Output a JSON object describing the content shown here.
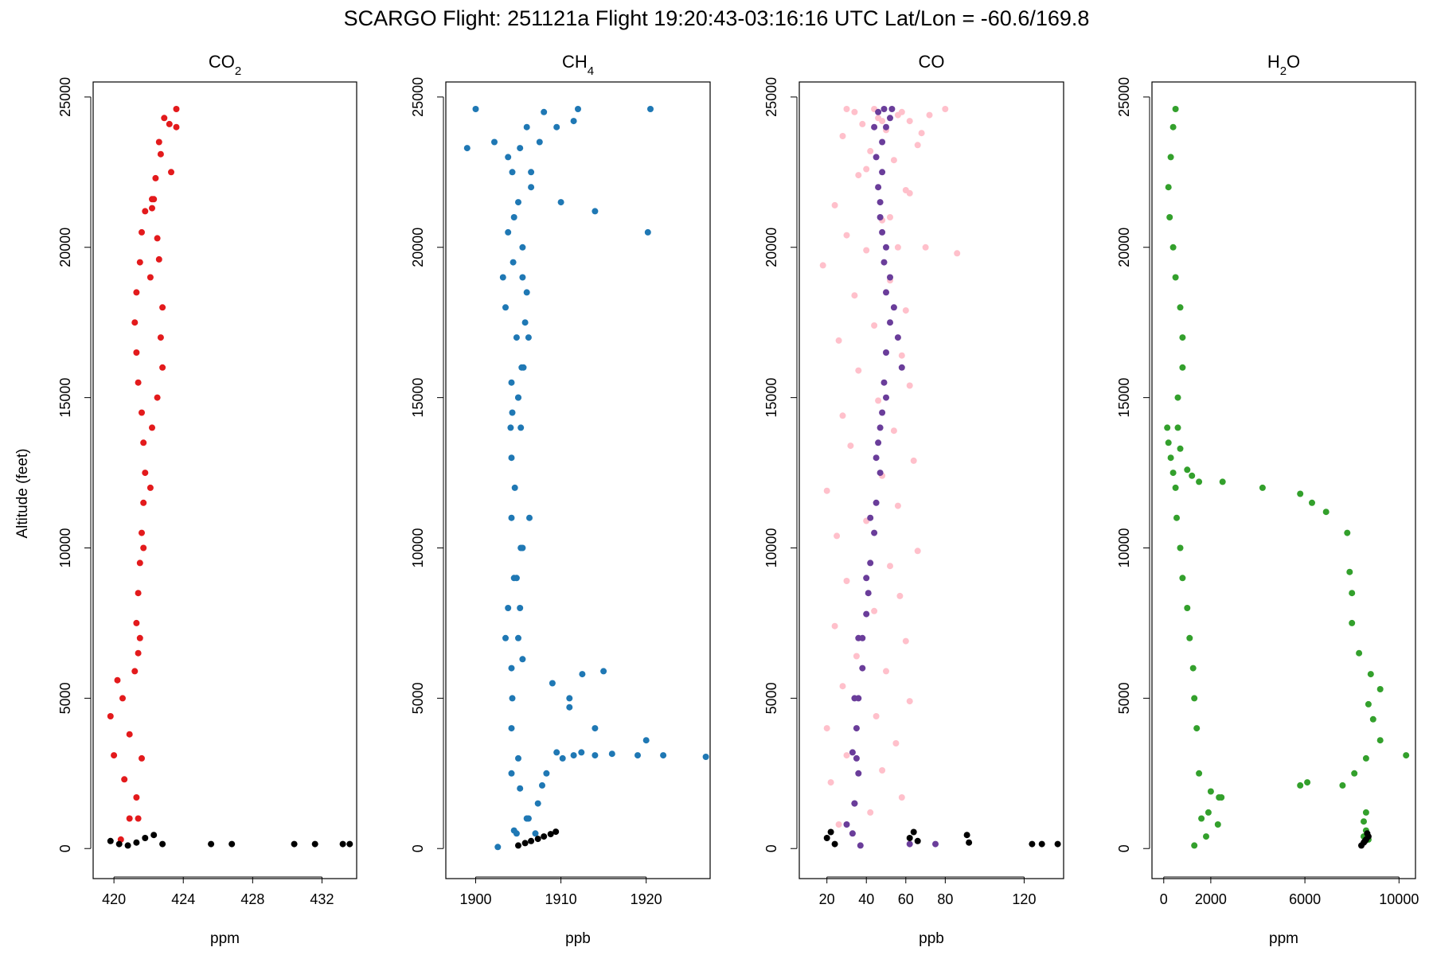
{
  "figure": {
    "title": "SCARGO Flight: 251121a  Flight  19:20:43-03:16:16 UTC  Lat/Lon = -60.6/169.8",
    "ylabel": "Altitude (feet)"
  },
  "chart_data": [
    {
      "type": "scatter",
      "title": "CO",
      "title_sub": "2",
      "title_after": "",
      "xlabel": "ppm",
      "ylabel": "Altitude (feet)",
      "xlim": [
        418.8,
        434.0
      ],
      "ylim": [
        -1000,
        25500
      ],
      "xticks": [
        420,
        424,
        428,
        432
      ],
      "yticks": [
        0,
        5000,
        10000,
        15000,
        20000,
        25000
      ],
      "grid": false,
      "series": [
        {
          "color": "#e31a1c",
          "x": [
            420.4,
            420.9,
            421.3,
            420.6,
            420.0,
            420.9,
            419.8,
            420.5,
            420.2,
            421.2,
            421.4,
            421.3,
            421.4,
            421.5,
            421.6,
            421.7,
            421.8,
            421.7,
            421.6,
            421.4,
            421.3,
            421.2,
            421.3,
            421.5,
            421.6,
            421.8,
            422.2,
            423.3,
            422.6,
            423.6,
            422.9,
            423.6,
            423.2,
            422.7,
            422.4,
            422.3,
            422.2,
            422.5,
            422.6,
            422.1,
            422.8,
            422.7,
            422.8,
            422.5,
            422.2,
            422.1,
            421.7,
            421.5,
            421.6,
            421.4
          ],
          "y": [
            300,
            1000,
            1700,
            2300,
            3100,
            3800,
            4400,
            5000,
            5600,
            5900,
            6500,
            7500,
            8500,
            9500,
            10500,
            11500,
            12500,
            13500,
            14500,
            15500,
            16500,
            17500,
            18500,
            19500,
            20500,
            21200,
            21600,
            22500,
            23500,
            24000,
            24300,
            24600,
            24100,
            23100,
            22300,
            21600,
            21300,
            20300,
            19600,
            19000,
            18000,
            17000,
            16000,
            15000,
            14000,
            12000,
            10000,
            7000,
            3000,
            1000
          ]
        },
        {
          "color": "#000000",
          "x": [
            419.8,
            420.3,
            420.8,
            421.3,
            421.8,
            422.3,
            422.8,
            425.6,
            426.8,
            430.4,
            431.6,
            433.2,
            433.6
          ],
          "y": [
            250,
            150,
            100,
            200,
            350,
            450,
            150,
            150,
            150,
            150,
            150,
            150,
            150
          ]
        }
      ]
    },
    {
      "type": "scatter",
      "title": "CH",
      "title_sub": "4",
      "title_after": "",
      "xlabel": "ppb",
      "ylabel": "Altitude (feet)",
      "xlim": [
        1896.5,
        1927.5
      ],
      "ylim": [
        -1000,
        25500
      ],
      "xticks": [
        1900,
        1910,
        1920
      ],
      "yticks": [
        0,
        5000,
        10000,
        15000,
        20000,
        25000
      ],
      "grid": false,
      "series": [
        {
          "color": "#1f78b4",
          "x": [
            1902.6,
            1904.8,
            1906.2,
            1907.3,
            1907.8,
            1908.3,
            1910.2,
            1911.5,
            1912.4,
            1914.0,
            1916.0,
            1919.0,
            1922.0,
            1927.0,
            1920.0,
            1914.0,
            1911.0,
            1909.0,
            1905.5,
            1905.0,
            1905.2,
            1904.8,
            1905.3,
            1904.2,
            1904.6,
            1904.2,
            1904.1,
            1904.3,
            1905.0,
            1904.2,
            1905.6,
            1904.8,
            1903.5,
            1903.2,
            1904.4,
            1905.5,
            1903.8,
            1904.5,
            1905.0,
            1906.5,
            1904.3,
            1903.8,
            1905.2,
            1902.2,
            1899.0,
            1906.0,
            1911.5,
            1908.0,
            1900.0,
            1912.0,
            1920.5,
            1920.2,
            1914.0,
            1910.0,
            1906.5,
            1907.5,
            1909.5,
            1905.5,
            1906.0,
            1905.8,
            1906.2,
            1905.4,
            1905.0,
            1905.3,
            1906.3,
            1905.5,
            1904.5,
            1903.8,
            1903.5,
            1904.2,
            1904.3,
            1904.2,
            1905.0,
            1905.2,
            1906.0,
            1907.0,
            1909.5,
            1911.0,
            1912.5,
            1915.0,
            1904.5,
            1904.2
          ],
          "y": [
            50,
            500,
            1000,
            1500,
            2100,
            2500,
            3000,
            3100,
            3200,
            3100,
            3150,
            3100,
            3100,
            3050,
            3600,
            4000,
            4700,
            5500,
            6300,
            7000,
            8000,
            9000,
            10000,
            11000,
            12000,
            13000,
            14000,
            14500,
            15000,
            15500,
            16000,
            17000,
            18000,
            19000,
            19500,
            20000,
            20500,
            21000,
            21500,
            22000,
            22500,
            23000,
            23300,
            23500,
            23300,
            24000,
            24200,
            24500,
            24600,
            24600,
            24600,
            20500,
            21200,
            21500,
            22500,
            23500,
            24000,
            19000,
            18500,
            17500,
            17000,
            16000,
            15000,
            14000,
            11000,
            10000,
            9000,
            8000,
            7000,
            6000,
            5000,
            4000,
            3000,
            2000,
            1000,
            500,
            3200,
            5000,
            5800,
            5900,
            600,
            2500
          ]
        },
        {
          "color": "#000000",
          "x": [
            1905.0,
            1905.8,
            1906.5,
            1907.3,
            1908.0,
            1908.8,
            1909.4
          ],
          "y": [
            100,
            180,
            250,
            320,
            400,
            480,
            560
          ]
        }
      ]
    },
    {
      "type": "scatter",
      "title": "CO",
      "title_sub": "",
      "title_after": "",
      "xlabel": "ppb",
      "ylabel": "Altitude (feet)",
      "xlim": [
        6,
        140
      ],
      "ylim": [
        -1000,
        25500
      ],
      "xticks": [
        20,
        40,
        60,
        80,
        120
      ],
      "yticks": [
        0,
        5000,
        10000,
        15000,
        20000,
        25000
      ],
      "grid": false,
      "series": [
        {
          "color": "#ffc0cb",
          "x": [
            26,
            42,
            58,
            22,
            48,
            30,
            55,
            20,
            45,
            62,
            28,
            50,
            35,
            60,
            24,
            44,
            57,
            30,
            52,
            66,
            25,
            40,
            56,
            20,
            48,
            64,
            32,
            54,
            28,
            46,
            62,
            36,
            58,
            26,
            44,
            60,
            34,
            52,
            18,
            40,
            56,
            70,
            30,
            48,
            24,
            60,
            36,
            54,
            42,
            66,
            28,
            50,
            38,
            62,
            46,
            72,
            34,
            58,
            44,
            80,
            30,
            56,
            48,
            68,
            40,
            62,
            52,
            86
          ],
          "y": [
            800,
            1200,
            1700,
            2200,
            2600,
            3100,
            3500,
            4000,
            4400,
            4900,
            5400,
            5900,
            6400,
            6900,
            7400,
            7900,
            8400,
            8900,
            9400,
            9900,
            10400,
            10900,
            11400,
            11900,
            12400,
            12900,
            13400,
            13900,
            14400,
            14900,
            15400,
            15900,
            16400,
            16900,
            17400,
            17900,
            18400,
            18900,
            19400,
            19900,
            20000,
            20000,
            20400,
            20900,
            21400,
            21900,
            22400,
            22900,
            23200,
            23400,
            23700,
            23900,
            24100,
            24200,
            24300,
            24400,
            24500,
            24500,
            24600,
            24600,
            24600,
            24400,
            24200,
            23800,
            22600,
            21800,
            21000,
            19800
          ]
        },
        {
          "color": "#6a3d9a",
          "x": [
            37,
            30,
            34,
            36,
            33,
            35,
            34,
            38,
            36,
            40,
            41,
            42,
            44,
            45,
            47,
            46,
            48,
            49,
            50,
            52,
            50,
            49,
            48,
            47,
            48,
            48,
            50,
            52,
            53,
            49,
            46,
            44,
            45,
            46,
            47,
            50,
            52,
            54,
            56,
            58,
            50,
            47,
            45,
            42,
            40,
            38,
            36,
            35,
            34,
            33,
            62,
            75
          ],
          "y": [
            100,
            800,
            1500,
            2500,
            3200,
            4000,
            5000,
            6000,
            7000,
            7800,
            8500,
            9500,
            10500,
            11500,
            12500,
            13500,
            14500,
            15500,
            16500,
            17500,
            18500,
            19500,
            20500,
            21500,
            22500,
            23500,
            24000,
            24300,
            24600,
            24600,
            24500,
            24000,
            23000,
            22000,
            21000,
            20000,
            19000,
            18000,
            17000,
            16000,
            15000,
            14000,
            13000,
            11000,
            9000,
            7000,
            5000,
            3000,
            1500,
            500,
            150,
            150
          ]
        },
        {
          "color": "#000000",
          "x": [
            20,
            22,
            24,
            62,
            64,
            66,
            91,
            92,
            124,
            129,
            137
          ],
          "y": [
            350,
            550,
            150,
            350,
            550,
            250,
            450,
            200,
            150,
            150,
            150
          ]
        }
      ]
    },
    {
      "type": "scatter",
      "title": "H",
      "title_sub": "2",
      "title_after": "O",
      "xlabel": "ppm",
      "ylabel": "Altitude (feet)",
      "xlim": [
        -500,
        10700
      ],
      "ylim": [
        -1000,
        25500
      ],
      "xticks": [
        0,
        2000,
        6000,
        10000
      ],
      "yticks": [
        0,
        5000,
        10000,
        15000,
        20000,
        25000
      ],
      "grid": false,
      "series": [
        {
          "color": "#33a02c",
          "x": [
            1300,
            1800,
            2300,
            2450,
            2000,
            2350,
            1900,
            1600,
            1500,
            1400,
            1300,
            1250,
            1100,
            1000,
            800,
            700,
            550,
            500,
            400,
            300,
            200,
            150,
            600,
            800,
            800,
            700,
            500,
            400,
            250,
            200,
            300,
            400,
            500,
            600,
            700,
            1000,
            1200,
            1500,
            2500,
            4200,
            5800,
            6300,
            6900,
            7800,
            7900,
            8000,
            8000,
            8300,
            8800,
            9200,
            8700,
            8900,
            9200,
            10300,
            8600,
            8100,
            7600,
            6100,
            5800,
            8600,
            8500,
            8600,
            8500,
            8700
          ],
          "y": [
            100,
            400,
            800,
            1700,
            1900,
            1700,
            1200,
            1000,
            2500,
            4000,
            5000,
            6000,
            7000,
            8000,
            9000,
            10000,
            11000,
            12000,
            12500,
            13000,
            13500,
            14000,
            15000,
            16000,
            17000,
            18000,
            19000,
            20000,
            21000,
            22000,
            23000,
            24000,
            24600,
            14000,
            13300,
            12600,
            12400,
            12200,
            12200,
            12000,
            11800,
            11500,
            11200,
            10500,
            9200,
            8500,
            7500,
            6500,
            5800,
            5300,
            4800,
            4300,
            3600,
            3100,
            3000,
            2500,
            2100,
            2200,
            2100,
            1200,
            900,
            600,
            400,
            300
          ]
        },
        {
          "color": "#000000",
          "x": [
            8400,
            8500,
            8600,
            8700,
            8650,
            8550
          ],
          "y": [
            100,
            200,
            300,
            400,
            500,
            250
          ]
        }
      ]
    }
  ]
}
